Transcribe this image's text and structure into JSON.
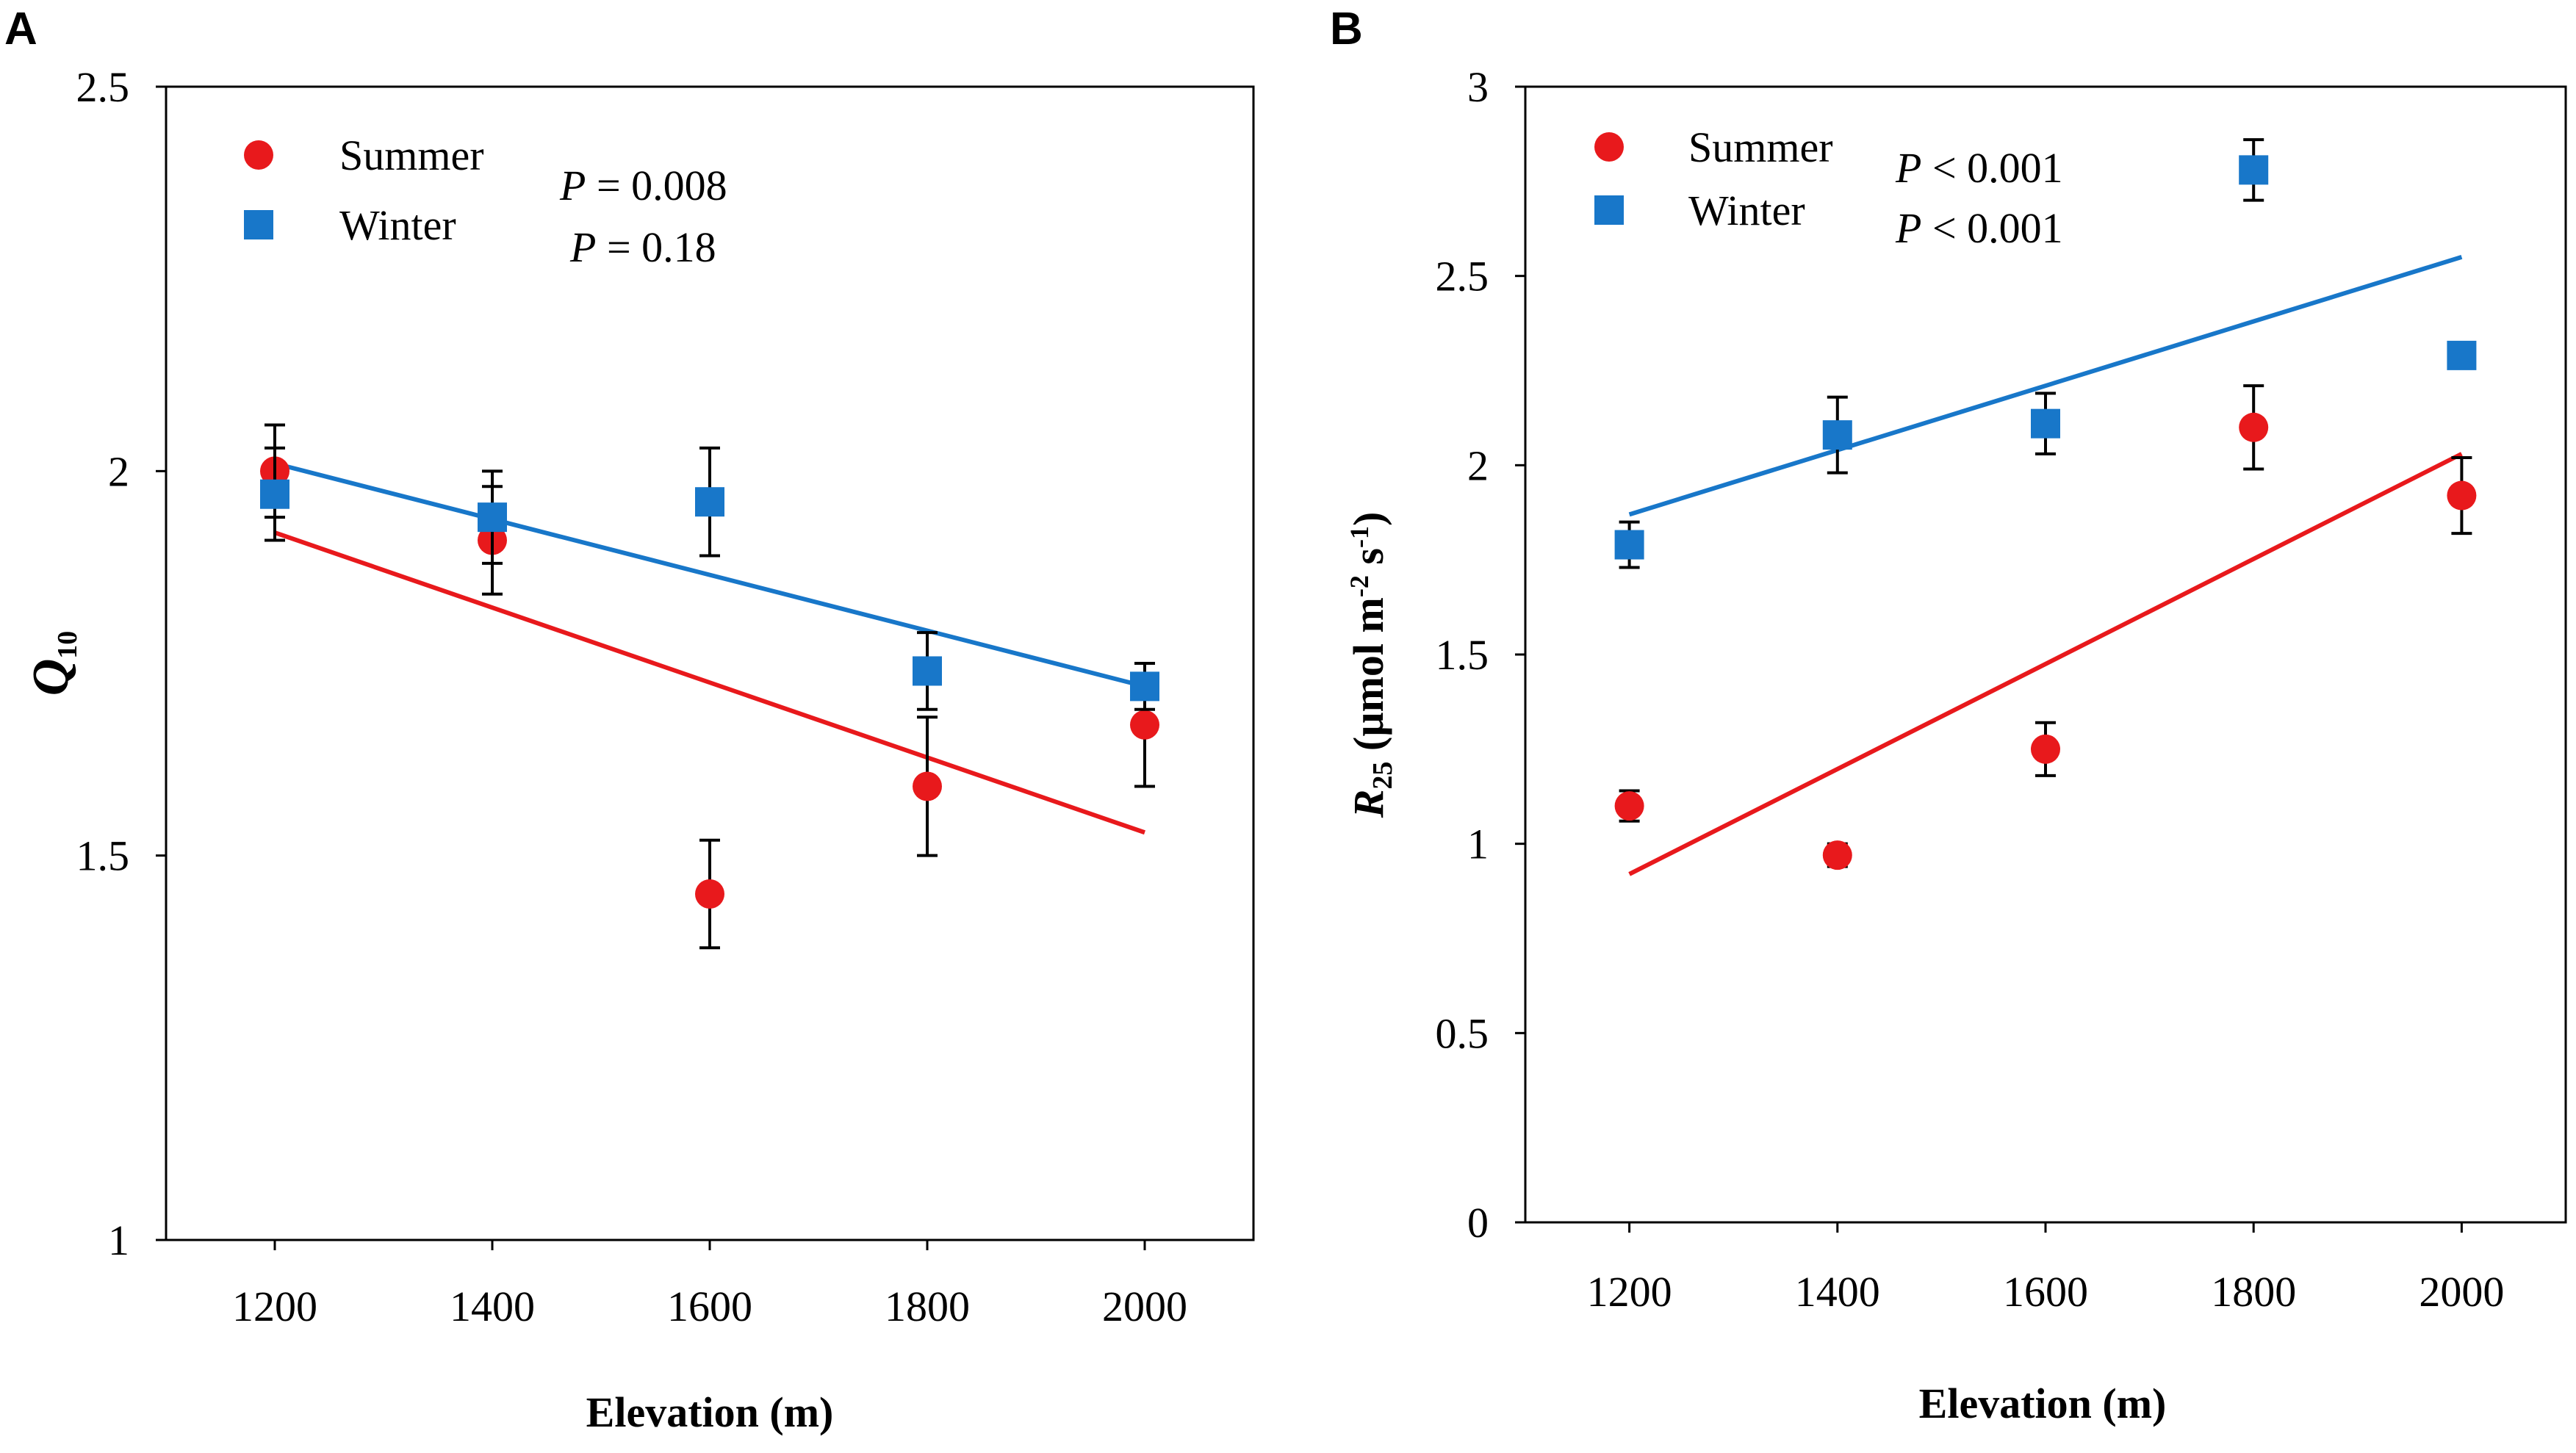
{
  "chart_data": [
    {
      "panel": "A",
      "type": "scatter",
      "title": "",
      "xlabel": "Elevation (m)",
      "ylabel": "Q",
      "ylabel_sub": "10",
      "xlim": [
        1100,
        2100
      ],
      "ylim": [
        1,
        2.5
      ],
      "x_ticks": [
        1200,
        1400,
        1600,
        1800,
        2000
      ],
      "y_ticks": [
        1,
        1.5,
        2,
        2.5
      ],
      "y_tick_labels": [
        "1",
        "1.5",
        "2",
        "2.5"
      ],
      "legend_position": "top-left",
      "series": [
        {
          "name": "Summer",
          "marker": "circle",
          "color": "#e8191c",
          "x": [
            1200,
            1400,
            1600,
            1800,
            2000
          ],
          "values": [
            2.0,
            1.91,
            1.45,
            1.59,
            1.67
          ],
          "error": [
            0.06,
            0.07,
            0.07,
            0.09,
            0.08
          ],
          "trend": [
            [
              1200,
              1.92
            ],
            [
              2000,
              1.53
            ]
          ],
          "p_prefix": "P",
          "p_op": "=",
          "p_value": "0.008"
        },
        {
          "name": "Winter",
          "marker": "square",
          "color": "#1877c9",
          "x": [
            1200,
            1400,
            1600,
            1800,
            2000
          ],
          "values": [
            1.97,
            1.94,
            1.96,
            1.74,
            1.72
          ],
          "error": [
            0.06,
            0.06,
            0.07,
            0.05,
            0.03
          ],
          "trend": [
            [
              1200,
              2.01
            ],
            [
              2000,
              1.72
            ]
          ],
          "p_prefix": "P",
          "p_op": "=",
          "p_value": "0.18"
        }
      ]
    },
    {
      "panel": "B",
      "type": "scatter",
      "title": "",
      "xlabel": "Elevation (m)",
      "ylabel_r": "R",
      "ylabel_sub": "25",
      "ylabel_unit_a": " (µmol m",
      "ylabel_sup1": "-2",
      "ylabel_unit_b": " s",
      "ylabel_sup2": "-1",
      "ylabel_unit_c": ")",
      "xlim": [
        1100,
        2100
      ],
      "ylim": [
        0,
        3
      ],
      "x_ticks": [
        1200,
        1400,
        1600,
        1800,
        2000
      ],
      "y_ticks": [
        0,
        0.5,
        1,
        1.5,
        2,
        2.5,
        3
      ],
      "y_tick_labels": [
        "0",
        "0.5",
        "1",
        "1.5",
        "2",
        "2.5",
        "3"
      ],
      "legend_position": "top-left",
      "series": [
        {
          "name": "Summer",
          "marker": "circle",
          "color": "#e8191c",
          "x": [
            1200,
            1400,
            1600,
            1800,
            2000
          ],
          "values": [
            1.1,
            0.97,
            1.25,
            2.1,
            1.92
          ],
          "error": [
            0.04,
            0.03,
            0.07,
            0.11,
            0.1
          ],
          "trend": [
            [
              1200,
              0.92
            ],
            [
              2000,
              2.03
            ]
          ],
          "p_prefix": "P",
          "p_op": "<",
          "p_value": "0.001"
        },
        {
          "name": "Winter",
          "marker": "square",
          "color": "#1877c9",
          "x": [
            1200,
            1400,
            1600,
            1800,
            2000
          ],
          "values": [
            1.79,
            2.08,
            2.11,
            2.78,
            2.29
          ],
          "error": [
            0.06,
            0.1,
            0.08,
            0.08,
            0.0
          ],
          "trend": [
            [
              1200,
              1.87
            ],
            [
              2000,
              2.55
            ]
          ],
          "p_prefix": "P",
          "p_op": "<",
          "p_value": "0.001"
        }
      ]
    }
  ]
}
